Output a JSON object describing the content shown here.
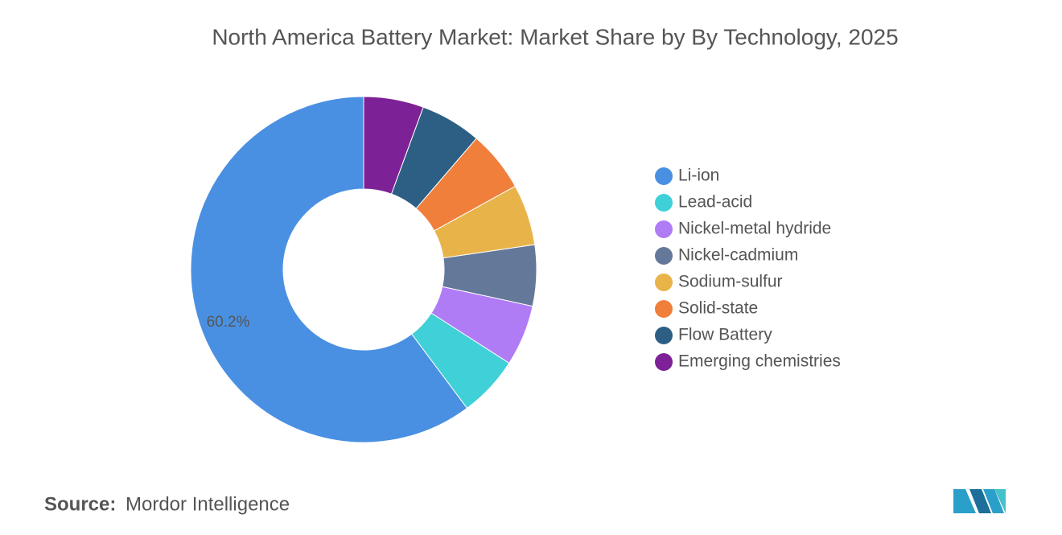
{
  "chart_data": {
    "type": "donut",
    "title": "North America Battery Market: Market Share by By Technology, 2025",
    "categories": [
      "Li-ion",
      "Lead-acid",
      "Nickel-metal hydride",
      "Nickel-cadmium",
      "Sodium-sulfur",
      "Solid-state",
      "Flow Battery",
      "Emerging chemistries"
    ],
    "values": [
      60.2,
      5.7,
      5.7,
      5.7,
      5.7,
      5.7,
      5.7,
      5.6
    ],
    "value_labels": [
      "60.2%",
      null,
      null,
      null,
      null,
      null,
      null,
      null
    ],
    "colors": [
      "#4a90e2",
      "#3fd0d8",
      "#b07cf5",
      "#64789a",
      "#e8b44a",
      "#f07f3c",
      "#2d5f85",
      "#7d2196"
    ],
    "legend": "right"
  },
  "source": {
    "label": "Source:",
    "text": "Mordor Intelligence"
  }
}
